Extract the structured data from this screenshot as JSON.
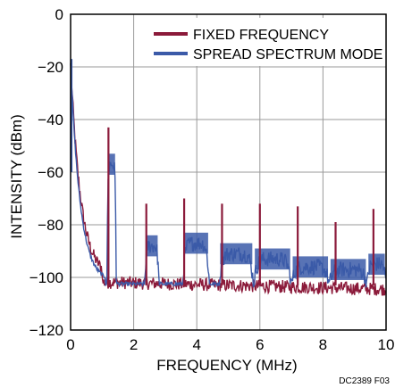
{
  "chart_data": {
    "type": "line",
    "xlabel": "FREQUENCY (MHz)",
    "ylabel": "INTENSITY (dBm)",
    "xlim": [
      0,
      10
    ],
    "ylim": [
      -120,
      0
    ],
    "x_ticks": [
      "0",
      "2",
      "4",
      "6",
      "8",
      "10"
    ],
    "y_ticks": [
      "0",
      "−20",
      "−40",
      "−60",
      "−80",
      "−100",
      "−120"
    ],
    "grid": true,
    "legend_position": "top-right",
    "note": "DC2389 F03",
    "colors": {
      "fixed": "#8b1a3a",
      "spread": "#3b5aa8"
    },
    "series": [
      {
        "name": "FIXED FREQUENCY",
        "noise_floor": -103,
        "peaks": [
          {
            "x": 1.2,
            "y": -43
          },
          {
            "x": 2.4,
            "y": -72
          },
          {
            "x": 3.6,
            "y": -70
          },
          {
            "x": 4.8,
            "y": -72
          },
          {
            "x": 6.0,
            "y": -72
          },
          {
            "x": 7.2,
            "y": -73
          },
          {
            "x": 8.4,
            "y": -79
          },
          {
            "x": 9.6,
            "y": -74
          }
        ]
      },
      {
        "name": "SPREAD SPECTRUM MODE",
        "noise_floor": -103,
        "bands": [
          {
            "x_start": 1.15,
            "x_end": 1.45,
            "y_top": -53
          },
          {
            "x_start": 2.35,
            "x_end": 2.8,
            "y_top": -84
          },
          {
            "x_start": 3.55,
            "x_end": 4.4,
            "y_top": -83
          },
          {
            "x_start": 4.7,
            "x_end": 5.8,
            "y_top": -87
          },
          {
            "x_start": 5.8,
            "x_end": 7.0,
            "y_top": -89
          },
          {
            "x_start": 7.0,
            "x_end": 8.2,
            "y_top": -92
          },
          {
            "x_start": 8.2,
            "x_end": 9.4,
            "y_top": -93
          },
          {
            "x_start": 9.4,
            "x_end": 10.0,
            "y_top": -91
          }
        ]
      }
    ]
  }
}
